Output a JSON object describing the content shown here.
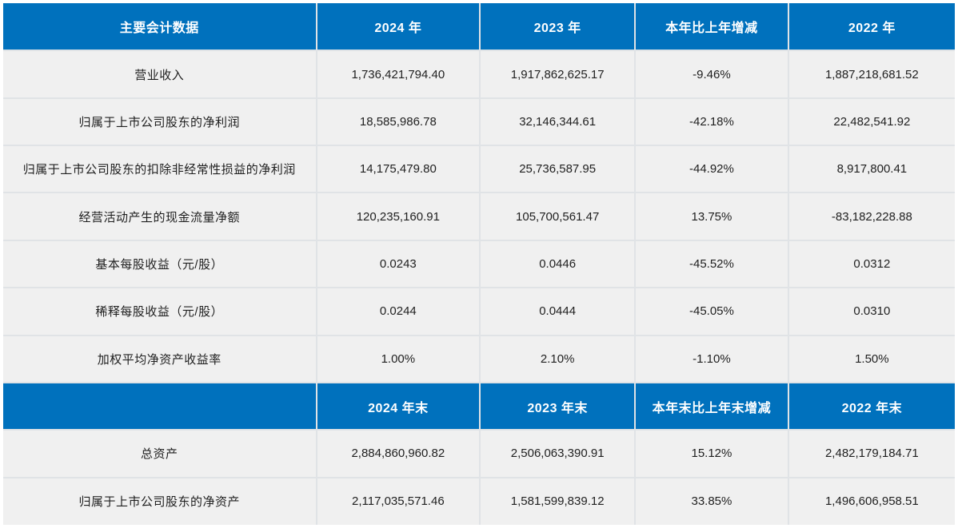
{
  "page": {
    "title": "主要会计数据"
  },
  "colors": {
    "header_bg": "#0071BD",
    "header_text": "#FFFFFF",
    "row_bg": "#F0F0F0",
    "cell_text": "#1F1F1F",
    "grid": "#E0E3E6",
    "page_bg": "#FFFFFF"
  },
  "chart_data": {
    "type": "table",
    "column_widths_percent": [
      32.9,
      17.2,
      16.3,
      16.1,
      17.5
    ],
    "sections": [
      {
        "header": [
          "主要会计数据",
          "2024 年",
          "2023 年",
          "本年比上年增减",
          "2022 年"
        ],
        "rows": [
          [
            "营业收入",
            "1,736,421,794.40",
            "1,917,862,625.17",
            "-9.46%",
            "1,887,218,681.52"
          ],
          [
            "归属于上市公司股东的净利润",
            "18,585,986.78",
            "32,146,344.61",
            "-42.18%",
            "22,482,541.92"
          ],
          [
            "归属于上市公司股东的扣除非经常性损益的净利润",
            "14,175,479.80",
            "25,736,587.95",
            "-44.92%",
            "8,917,800.41"
          ],
          [
            "经营活动产生的现金流量净额",
            "120,235,160.91",
            "105,700,561.47",
            "13.75%",
            "-83,182,228.88"
          ],
          [
            "基本每股收益（元/股）",
            "0.0243",
            "0.0446",
            "-45.52%",
            "0.0312"
          ],
          [
            "稀释每股收益（元/股）",
            "0.0244",
            "0.0444",
            "-45.05%",
            "0.0310"
          ],
          [
            "加权平均净资产收益率",
            "1.00%",
            "2.10%",
            "-1.10%",
            "1.50%"
          ]
        ]
      },
      {
        "header": [
          "",
          "2024 年末",
          "2023 年末",
          "本年末比上年末增减",
          "2022 年末"
        ],
        "rows": [
          [
            "总资产",
            "2,884,860,960.82",
            "2,506,063,390.91",
            "15.12%",
            "2,482,179,184.71"
          ],
          [
            "归属于上市公司股东的净资产",
            "2,117,035,571.46",
            "1,581,599,839.12",
            "33.85%",
            "1,496,606,958.51"
          ]
        ]
      }
    ]
  }
}
